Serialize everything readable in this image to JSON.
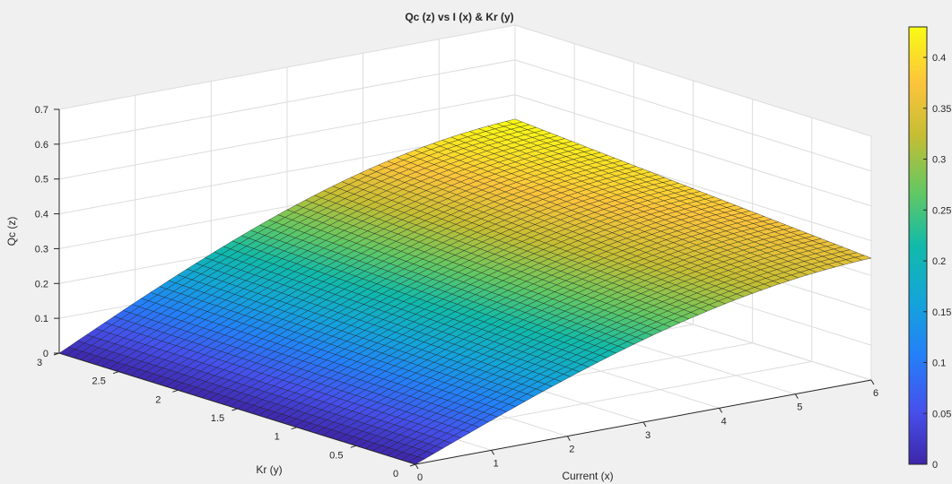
{
  "chart_data": {
    "type": "surface",
    "title": "Qc (z) vs I (x) & Kr (y)",
    "xlabel": "Current (x)",
    "ylabel": "Kr (y)",
    "zlabel": "Qc (z)",
    "xlim": [
      0,
      6
    ],
    "ylim": [
      0,
      3
    ],
    "zlim": [
      0,
      0.7
    ],
    "x_ticks": [
      "0",
      "1",
      "2",
      "3",
      "4",
      "5",
      "6"
    ],
    "y_ticks": [
      "0",
      "0.5",
      "1",
      "1.5",
      "2",
      "2.5",
      "3"
    ],
    "z_ticks": [
      "0",
      "0.1",
      "0.2",
      "0.3",
      "0.4",
      "0.5",
      "0.6",
      "0.7"
    ],
    "grid": true,
    "colormap": "parula",
    "colorbar": {
      "range": [
        0,
        0.43
      ],
      "ticks": [
        "0",
        "0.05",
        "0.1",
        "0.15",
        "0.2",
        "0.25",
        "0.3",
        "0.35",
        "0.4"
      ]
    },
    "surface_corners": [
      {
        "x": 0,
        "y": 0,
        "z": 0
      },
      {
        "x": 0,
        "y": 3,
        "z": 0
      },
      {
        "x": 6,
        "y": 0,
        "z": 0.35
      },
      {
        "x": 6,
        "y": 3,
        "z": 0.43
      }
    ]
  }
}
